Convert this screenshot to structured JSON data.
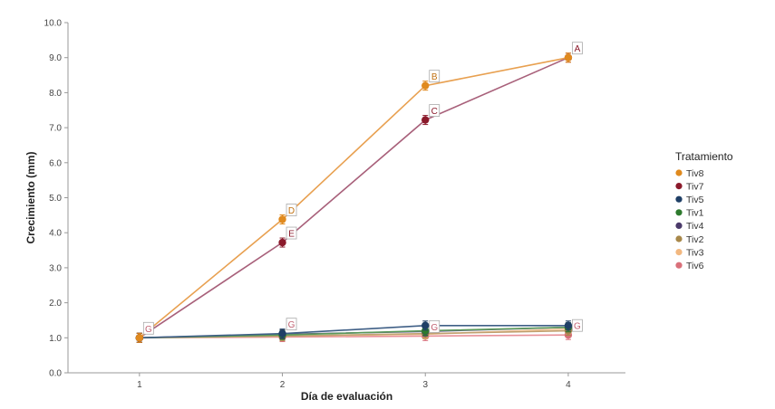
{
  "chart_data": {
    "type": "line",
    "title": "",
    "xlabel": "Día de evaluación",
    "ylabel": "Crecimiento (mm)",
    "x": [
      1,
      2,
      3,
      4
    ],
    "x_tick_labels": [
      "1",
      "2",
      "3",
      "4"
    ],
    "ylim": [
      0.0,
      10.0
    ],
    "y_ticks": [
      "0.0",
      "1.0",
      "2.0",
      "3.0",
      "4.0",
      "5.0",
      "6.0",
      "7.0",
      "8.0",
      "9.0",
      "10.0"
    ],
    "grid": false,
    "legend_title": "Tratamiento",
    "legend_position": "right",
    "series": [
      {
        "name": "Tiv8",
        "color": "#E08A1E",
        "line_color": "#E8A050",
        "values": [
          1.0,
          4.38,
          8.2,
          9.0
        ]
      },
      {
        "name": "Tiv7",
        "color": "#8B1A2B",
        "line_color": "#A8607A",
        "values": [
          1.0,
          3.72,
          7.22,
          9.0
        ]
      },
      {
        "name": "Tiv5",
        "color": "#1F3F66",
        "line_color": "#3F5F86",
        "values": [
          1.0,
          1.12,
          1.35,
          1.35
        ]
      },
      {
        "name": "Tiv1",
        "color": "#2E7A2E",
        "line_color": "#5A9A5A",
        "values": [
          1.0,
          1.08,
          1.2,
          1.3
        ]
      },
      {
        "name": "Tiv4",
        "color": "#4B3A6A",
        "line_color": "#6B5A8A",
        "values": [
          1.0,
          1.1,
          1.18,
          1.3
        ]
      },
      {
        "name": "Tiv2",
        "color": "#A8884A",
        "line_color": "#C0A070",
        "values": [
          1.0,
          1.05,
          1.12,
          1.2
        ]
      },
      {
        "name": "Tiv3",
        "color": "#F2B880",
        "line_color": "#F5C89A",
        "values": [
          1.0,
          1.05,
          1.1,
          1.25
        ]
      },
      {
        "name": "Tiv6",
        "color": "#D9707A",
        "line_color": "#E89098",
        "values": [
          1.0,
          1.02,
          1.05,
          1.08
        ]
      }
    ],
    "annotations": [
      {
        "text": "G",
        "x": 1,
        "y": 1.0,
        "color": "#C06070"
      },
      {
        "text": "E",
        "x": 2,
        "y": 3.72,
        "color": "#8B1A2B"
      },
      {
        "text": "D",
        "x": 2,
        "y": 4.38,
        "color": "#C07010"
      },
      {
        "text": "G",
        "x": 2,
        "y": 1.12,
        "color": "#C06070"
      },
      {
        "text": "C",
        "x": 3,
        "y": 7.22,
        "color": "#8B1A2B"
      },
      {
        "text": "B",
        "x": 3,
        "y": 8.2,
        "color": "#C07010"
      },
      {
        "text": "G",
        "x": 3,
        "y": 1.05,
        "color": "#C06070"
      },
      {
        "text": "A",
        "x": 4,
        "y": 9.0,
        "color": "#8B1A2B"
      },
      {
        "text": "G",
        "x": 4,
        "y": 1.08,
        "color": "#C06070"
      }
    ]
  }
}
